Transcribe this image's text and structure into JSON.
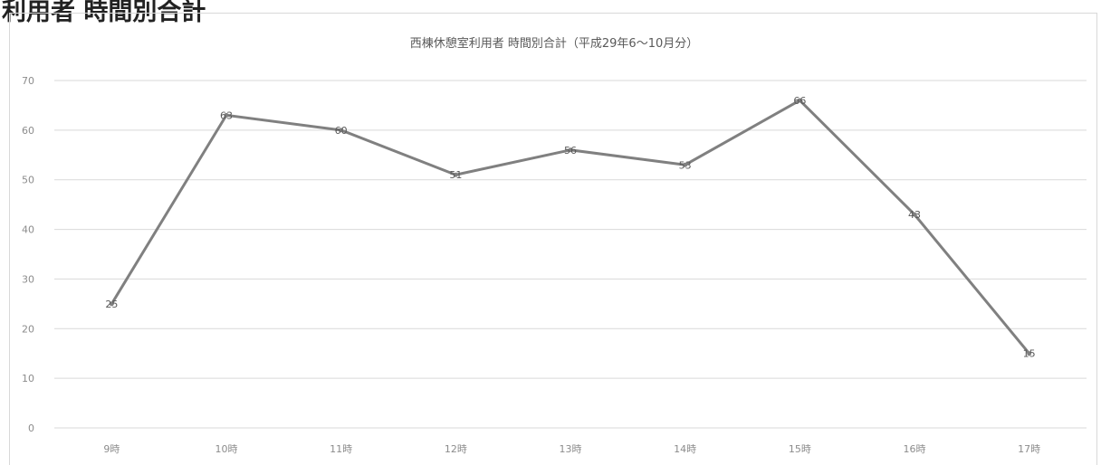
{
  "page": {
    "heading": "利用者 時間別合計"
  },
  "chart_data": {
    "type": "line",
    "title": "西棟休憩室利用者 時間別合計（平成29年6～10月分）",
    "categories": [
      "9時",
      "10時",
      "11時",
      "12時",
      "13時",
      "14時",
      "15時",
      "16時",
      "17時"
    ],
    "series": [
      {
        "values": [
          25,
          63,
          60,
          51,
          56,
          53,
          66,
          43,
          15
        ]
      }
    ],
    "ylim": [
      0,
      70
    ],
    "yticks": [
      0,
      10,
      20,
      30,
      40,
      50,
      60,
      70
    ],
    "grid": true,
    "legend": "none",
    "colors": {
      "line": "#808080",
      "grid": "#d9d9d9",
      "text": "#8c8c8c"
    }
  }
}
